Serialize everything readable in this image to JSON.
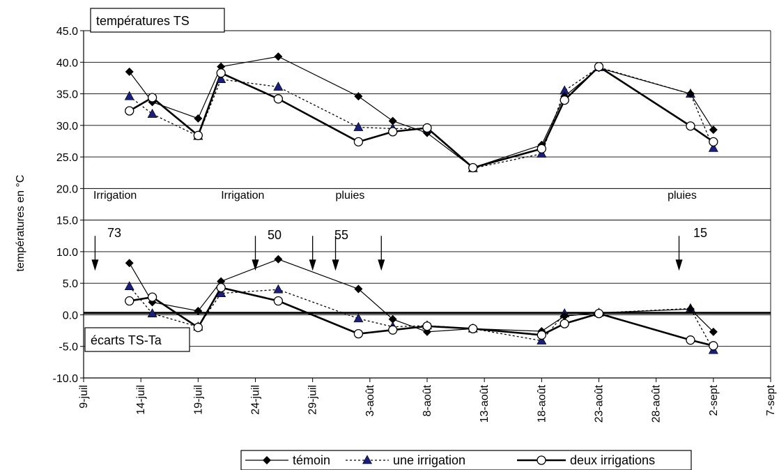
{
  "chart_data": {
    "type": "line",
    "ylabel": "températures en °C",
    "ylim": [
      -10,
      45
    ],
    "yticks": [
      "-10.0",
      "-5.0",
      "0.0",
      "5.0",
      "10.0",
      "15.0",
      "20.0",
      "25.0",
      "30.0",
      "35.0",
      "40.0",
      "45.0"
    ],
    "ytick_values": [
      -10,
      -5,
      0,
      5,
      10,
      15,
      20,
      25,
      30,
      35,
      40,
      45
    ],
    "xlim": [
      "2023-07-09",
      "2023-09-07"
    ],
    "xticks": [
      "9-juil",
      "14-juil",
      "19-juil",
      "24-juil",
      "29-juil",
      "3-août",
      "8-août",
      "13-août",
      "18-août",
      "23-août",
      "28-août",
      "2-sept",
      "7-sept"
    ],
    "xtick_dates": [
      "2023-07-09",
      "2023-07-14",
      "2023-07-19",
      "2023-07-24",
      "2023-07-29",
      "2023-08-03",
      "2023-08-08",
      "2023-08-13",
      "2023-08-18",
      "2023-08-23",
      "2023-08-28",
      "2023-09-02",
      "2023-09-07"
    ],
    "grid": true,
    "legend_position": "bottom",
    "series": [
      {
        "name": "témoin",
        "panel": "températures TS",
        "x": [
          "2023-07-13",
          "2023-07-15",
          "2023-07-19",
          "2023-07-21",
          "2023-07-26",
          "2023-08-02",
          "2023-08-05",
          "2023-08-08",
          "2023-08-12",
          "2023-08-18",
          "2023-08-20",
          "2023-08-23",
          "2023-08-31",
          "2023-09-02"
        ],
        "y": [
          38.5,
          33.7,
          31.1,
          39.3,
          40.9,
          34.6,
          30.7,
          28.8,
          23.3,
          26.9,
          34.6,
          39.1,
          35.0,
          29.3
        ]
      },
      {
        "name": "une irrigation",
        "panel": "températures TS",
        "x": [
          "2023-07-13",
          "2023-07-15",
          "2023-07-19",
          "2023-07-21",
          "2023-07-26",
          "2023-08-02",
          "2023-08-05",
          "2023-08-08",
          "2023-08-12",
          "2023-08-18",
          "2023-08-20",
          "2023-08-23",
          "2023-08-31",
          "2023-09-02"
        ],
        "y": [
          34.6,
          31.8,
          28.3,
          37.3,
          36.1,
          29.7,
          29.5,
          29.5,
          23.2,
          25.5,
          35.5,
          39.2,
          35.0,
          26.4
        ]
      },
      {
        "name": "deux irrigations",
        "panel": "températures TS",
        "x": [
          "2023-07-13",
          "2023-07-15",
          "2023-07-19",
          "2023-07-21",
          "2023-07-26",
          "2023-08-02",
          "2023-08-05",
          "2023-08-08",
          "2023-08-12",
          "2023-08-18",
          "2023-08-20",
          "2023-08-23",
          "2023-08-31",
          "2023-09-02"
        ],
        "y": [
          32.3,
          34.4,
          28.4,
          38.3,
          34.2,
          27.4,
          29.0,
          29.6,
          23.3,
          26.3,
          34.0,
          39.3,
          29.9,
          27.4
        ]
      },
      {
        "name": "témoin",
        "panel": "écarts TS-Ta",
        "x": [
          "2023-07-13",
          "2023-07-15",
          "2023-07-19",
          "2023-07-21",
          "2023-07-26",
          "2023-08-02",
          "2023-08-05",
          "2023-08-08",
          "2023-08-12",
          "2023-08-18",
          "2023-08-20",
          "2023-08-23",
          "2023-08-31",
          "2023-09-02"
        ],
        "y": [
          8.2,
          2.0,
          0.6,
          5.3,
          8.8,
          4.1,
          -0.7,
          -2.7,
          -2.2,
          -2.6,
          -0.2,
          0.3,
          0.9,
          -2.7
        ]
      },
      {
        "name": "une irrigation",
        "panel": "écarts TS-Ta",
        "x": [
          "2023-07-13",
          "2023-07-15",
          "2023-07-19",
          "2023-07-21",
          "2023-07-26",
          "2023-08-02",
          "2023-08-05",
          "2023-08-08",
          "2023-08-12",
          "2023-08-18",
          "2023-08-20",
          "2023-08-23",
          "2023-08-31",
          "2023-09-02"
        ],
        "y": [
          4.5,
          0.2,
          -1.9,
          3.4,
          4.0,
          -0.6,
          -1.9,
          -1.7,
          -2.2,
          -4.1,
          0.2,
          0.3,
          1.0,
          -5.6
        ]
      },
      {
        "name": "deux irrigations",
        "panel": "écarts TS-Ta",
        "x": [
          "2023-07-13",
          "2023-07-15",
          "2023-07-19",
          "2023-07-21",
          "2023-07-26",
          "2023-08-02",
          "2023-08-05",
          "2023-08-08",
          "2023-08-12",
          "2023-08-18",
          "2023-08-20",
          "2023-08-23",
          "2023-08-31",
          "2023-09-02"
        ],
        "y": [
          2.2,
          2.8,
          -2.0,
          4.3,
          2.2,
          -3.0,
          -2.4,
          -1.8,
          -2.2,
          -3.2,
          -1.4,
          0.2,
          -4.0,
          -4.9
        ]
      }
    ],
    "panel_labels": [
      "températures TS",
      "écarts TS-Ta"
    ],
    "annotations": [
      {
        "text": "Irrigation",
        "x": "2023-07-09",
        "y": 18.4
      },
      {
        "text": "Irrigation",
        "x": "2023-07-21",
        "y": 18.4
      },
      {
        "text": "pluies",
        "x": "2023-07-31",
        "y": 18.4
      },
      {
        "text": "pluies",
        "x": "2023-08-29",
        "y": 18.4
      },
      {
        "text": "73",
        "x": "2023-07-11",
        "y": 12.3
      },
      {
        "text": "50",
        "x": "2023-07-25",
        "y": 12.0
      },
      {
        "text": "55",
        "x": "2023-07-30",
        "y": 12.0
      },
      {
        "text": "15",
        "x": "2023-08-31",
        "y": 12.3
      }
    ],
    "event_arrows": [
      {
        "x": "2023-07-10",
        "y_from": 12.5,
        "y_to": 7.2
      },
      {
        "x": "2023-07-24",
        "y_from": 12.5,
        "y_to": 7.2
      },
      {
        "x": "2023-07-29",
        "y_from": 12.5,
        "y_to": 7.2
      },
      {
        "x": "2023-07-31",
        "y_from": 12.5,
        "y_to": 7.2
      },
      {
        "x": "2023-08-04",
        "y_from": 12.5,
        "y_to": 7.2
      },
      {
        "x": "2023-08-30",
        "y_from": 12.5,
        "y_to": 7.2
      }
    ],
    "reference_line": {
      "y": 0.3
    }
  }
}
